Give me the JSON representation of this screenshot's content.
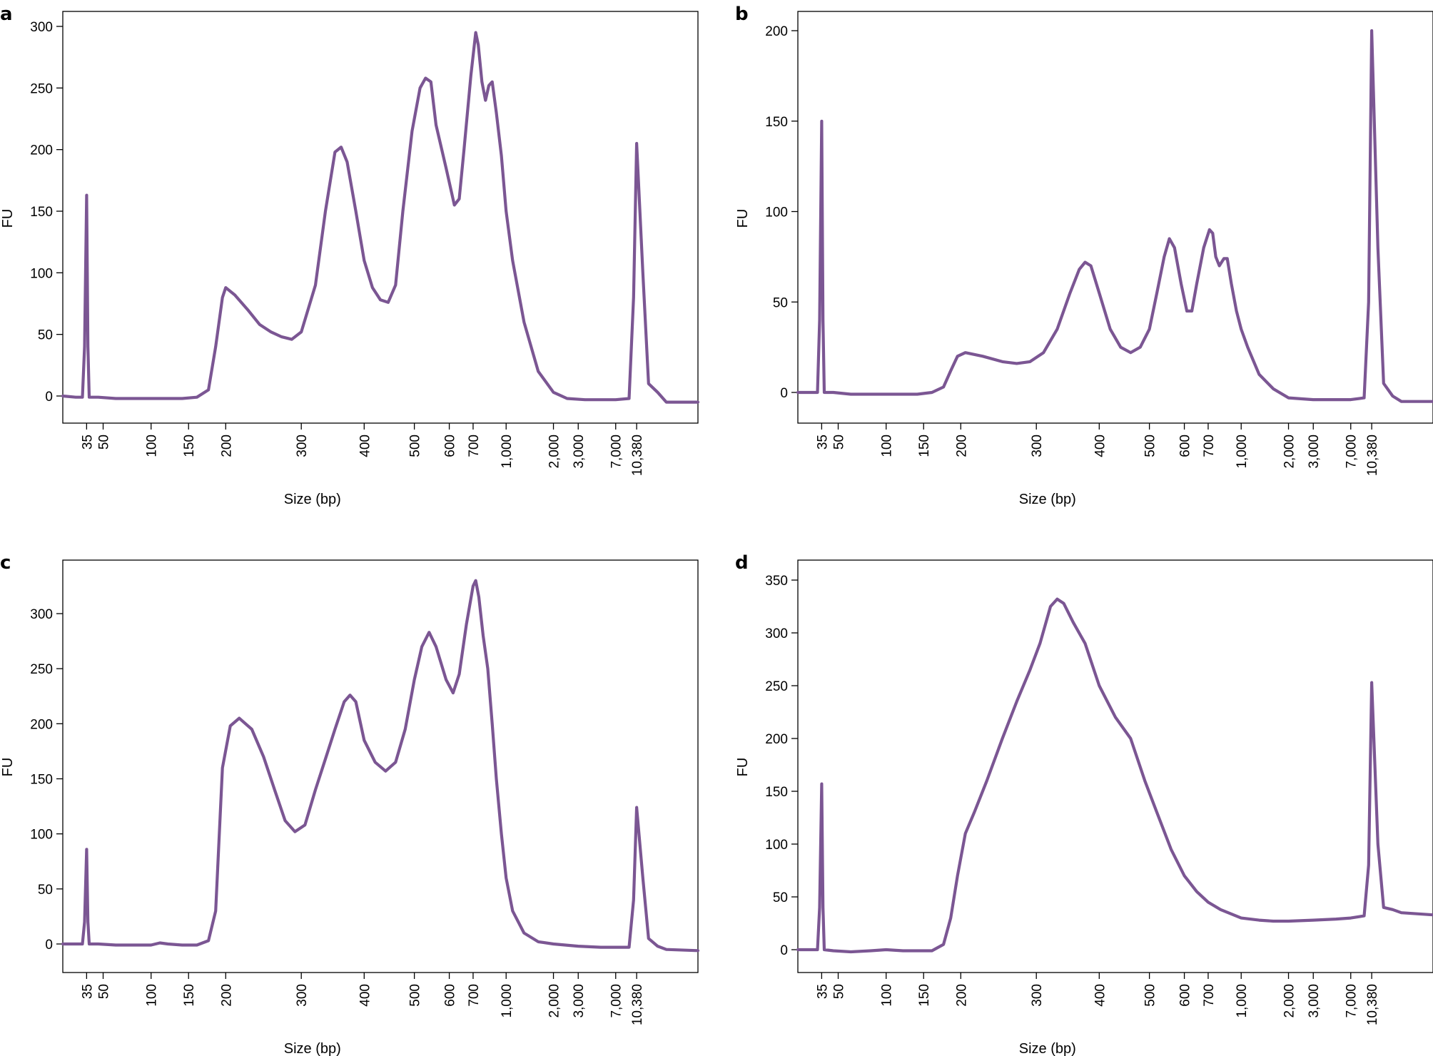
{
  "chart_data": [
    {
      "panel": "a",
      "type": "line",
      "xlabel": "Size (bp)",
      "ylabel": "FU",
      "xscale": "ladder (log-like)",
      "x_ticks": [
        "35",
        "50",
        "100",
        "150",
        "200",
        "300",
        "400",
        "500",
        "600",
        "700",
        "1,000",
        "2,000",
        "3,000",
        "7,000",
        "10,380"
      ],
      "y_ticks": [
        0,
        50,
        100,
        150,
        200,
        250,
        300
      ],
      "ylim": [
        -22,
        310
      ],
      "series": [
        {
          "name": "trace",
          "color": "#7b5693",
          "points": [
            [
              25,
              0
            ],
            [
              30,
              -1
            ],
            [
              33,
              -1
            ],
            [
              34,
              40
            ],
            [
              35,
              163
            ],
            [
              36,
              40
            ],
            [
              37,
              -1
            ],
            [
              45,
              -1
            ],
            [
              60,
              -2
            ],
            [
              80,
              -2
            ],
            [
              100,
              -2
            ],
            [
              120,
              -2
            ],
            [
              140,
              -2
            ],
            [
              160,
              -1
            ],
            [
              175,
              5
            ],
            [
              185,
              40
            ],
            [
              195,
              80
            ],
            [
              200,
              88
            ],
            [
              210,
              82
            ],
            [
              225,
              70
            ],
            [
              240,
              58
            ],
            [
              255,
              52
            ],
            [
              270,
              48
            ],
            [
              285,
              46
            ],
            [
              300,
              52
            ],
            [
              320,
              90
            ],
            [
              335,
              150
            ],
            [
              350,
              198
            ],
            [
              360,
              202
            ],
            [
              370,
              190
            ],
            [
              385,
              150
            ],
            [
              400,
              110
            ],
            [
              415,
              88
            ],
            [
              430,
              78
            ],
            [
              445,
              76
            ],
            [
              460,
              90
            ],
            [
              475,
              150
            ],
            [
              495,
              215
            ],
            [
              515,
              250
            ],
            [
              530,
              258
            ],
            [
              545,
              255
            ],
            [
              560,
              220
            ],
            [
              590,
              185
            ],
            [
              620,
              155
            ],
            [
              640,
              160
            ],
            [
              660,
              200
            ],
            [
              690,
              260
            ],
            [
              720,
              295
            ],
            [
              740,
              285
            ],
            [
              770,
              255
            ],
            [
              800,
              240
            ],
            [
              830,
              252
            ],
            [
              860,
              255
            ],
            [
              900,
              230
            ],
            [
              950,
              195
            ],
            [
              1000,
              150
            ],
            [
              1100,
              110
            ],
            [
              1300,
              60
            ],
            [
              1600,
              20
            ],
            [
              2000,
              3
            ],
            [
              2500,
              -2
            ],
            [
              3500,
              -3
            ],
            [
              5000,
              -3
            ],
            [
              7000,
              -3
            ],
            [
              9000,
              -2
            ],
            [
              9800,
              80
            ],
            [
              10380,
              205
            ],
            [
              10700,
              100
            ],
            [
              11000,
              10
            ],
            [
              11500,
              3
            ],
            [
              12000,
              -5
            ],
            [
              14000,
              -5
            ]
          ]
        }
      ]
    },
    {
      "panel": "b",
      "type": "line",
      "xlabel": "Size (bp)",
      "ylabel": "FU",
      "xscale": "ladder (log-like)",
      "x_ticks": [
        "35",
        "50",
        "100",
        "150",
        "200",
        "300",
        "400",
        "500",
        "600",
        "700",
        "1,000",
        "2,000",
        "3,000",
        "7,000",
        "10,380"
      ],
      "y_ticks": [
        0,
        50,
        100,
        150,
        200
      ],
      "ylim": [
        -17,
        211
      ],
      "series": [
        {
          "name": "trace",
          "color": "#7b5693",
          "points": [
            [
              25,
              0
            ],
            [
              30,
              0
            ],
            [
              33,
              0
            ],
            [
              34,
              40
            ],
            [
              35,
              150
            ],
            [
              36,
              40
            ],
            [
              37,
              0
            ],
            [
              45,
              0
            ],
            [
              60,
              -1
            ],
            [
              80,
              -1
            ],
            [
              100,
              -1
            ],
            [
              120,
              -1
            ],
            [
              140,
              -1
            ],
            [
              160,
              0
            ],
            [
              175,
              3
            ],
            [
              185,
              12
            ],
            [
              195,
              20
            ],
            [
              205,
              22
            ],
            [
              225,
              20
            ],
            [
              250,
              17
            ],
            [
              270,
              16
            ],
            [
              290,
              17
            ],
            [
              310,
              22
            ],
            [
              330,
              35
            ],
            [
              350,
              55
            ],
            [
              365,
              68
            ],
            [
              375,
              72
            ],
            [
              385,
              70
            ],
            [
              400,
              55
            ],
            [
              420,
              35
            ],
            [
              440,
              25
            ],
            [
              460,
              22
            ],
            [
              480,
              25
            ],
            [
              500,
              35
            ],
            [
              520,
              55
            ],
            [
              540,
              75
            ],
            [
              555,
              85
            ],
            [
              570,
              80
            ],
            [
              590,
              60
            ],
            [
              610,
              45
            ],
            [
              630,
              45
            ],
            [
              650,
              60
            ],
            [
              680,
              80
            ],
            [
              710,
              90
            ],
            [
              735,
              88
            ],
            [
              760,
              75
            ],
            [
              790,
              70
            ],
            [
              830,
              74
            ],
            [
              860,
              74
            ],
            [
              900,
              60
            ],
            [
              950,
              45
            ],
            [
              1000,
              35
            ],
            [
              1100,
              25
            ],
            [
              1300,
              10
            ],
            [
              1600,
              2
            ],
            [
              2000,
              -3
            ],
            [
              3000,
              -4
            ],
            [
              5000,
              -4
            ],
            [
              7000,
              -4
            ],
            [
              9000,
              -3
            ],
            [
              9800,
              50
            ],
            [
              10380,
              200
            ],
            [
              10700,
              80
            ],
            [
              11000,
              5
            ],
            [
              11500,
              -2
            ],
            [
              12000,
              -5
            ],
            [
              14000,
              -5
            ]
          ]
        }
      ]
    },
    {
      "panel": "c",
      "type": "line",
      "xlabel": "Size (bp)",
      "ylabel": "FU",
      "xscale": "ladder (log-like)",
      "x_ticks": [
        "35",
        "50",
        "100",
        "150",
        "200",
        "300",
        "400",
        "500",
        "600",
        "700",
        "1,000",
        "2,000",
        "3,000",
        "7,000",
        "10,380"
      ],
      "y_ticks": [
        0,
        50,
        100,
        150,
        200,
        250,
        300
      ],
      "ylim": [
        -25,
        345
      ],
      "series": [
        {
          "name": "trace",
          "color": "#7b5693",
          "points": [
            [
              25,
              0
            ],
            [
              30,
              0
            ],
            [
              33,
              0
            ],
            [
              34,
              20
            ],
            [
              35,
              86
            ],
            [
              36,
              20
            ],
            [
              37,
              0
            ],
            [
              45,
              0
            ],
            [
              60,
              -1
            ],
            [
              80,
              -1
            ],
            [
              100,
              -1
            ],
            [
              110,
              1
            ],
            [
              120,
              0
            ],
            [
              140,
              -1
            ],
            [
              160,
              -1
            ],
            [
              175,
              3
            ],
            [
              185,
              30
            ],
            [
              195,
              160
            ],
            [
              205,
              198
            ],
            [
              215,
              205
            ],
            [
              230,
              195
            ],
            [
              245,
              170
            ],
            [
              260,
              140
            ],
            [
              275,
              112
            ],
            [
              290,
              102
            ],
            [
              305,
              108
            ],
            [
              320,
              140
            ],
            [
              335,
              168
            ],
            [
              350,
              195
            ],
            [
              365,
              220
            ],
            [
              375,
              226
            ],
            [
              385,
              220
            ],
            [
              400,
              185
            ],
            [
              420,
              165
            ],
            [
              440,
              157
            ],
            [
              460,
              165
            ],
            [
              480,
              195
            ],
            [
              500,
              240
            ],
            [
              520,
              270
            ],
            [
              540,
              283
            ],
            [
              560,
              270
            ],
            [
              590,
              240
            ],
            [
              615,
              228
            ],
            [
              640,
              245
            ],
            [
              670,
              290
            ],
            [
              700,
              325
            ],
            [
              720,
              330
            ],
            [
              745,
              315
            ],
            [
              780,
              280
            ],
            [
              820,
              250
            ],
            [
              860,
              200
            ],
            [
              900,
              150
            ],
            [
              950,
              100
            ],
            [
              1000,
              60
            ],
            [
              1100,
              30
            ],
            [
              1300,
              10
            ],
            [
              1600,
              2
            ],
            [
              2000,
              0
            ],
            [
              3000,
              -2
            ],
            [
              5000,
              -3
            ],
            [
              7000,
              -3
            ],
            [
              9000,
              -3
            ],
            [
              9800,
              40
            ],
            [
              10380,
              124
            ],
            [
              10700,
              60
            ],
            [
              11000,
              5
            ],
            [
              11500,
              -2
            ],
            [
              12000,
              -5
            ],
            [
              14000,
              -6
            ]
          ]
        }
      ]
    },
    {
      "panel": "d",
      "type": "line",
      "xlabel": "Size (bp)",
      "ylabel": "FU",
      "xscale": "ladder (log-like)",
      "x_ticks": [
        "35",
        "50",
        "100",
        "150",
        "200",
        "300",
        "400",
        "500",
        "600",
        "700",
        "1,000",
        "2,000",
        "3,000",
        "7,000",
        "10,380"
      ],
      "y_ticks": [
        0,
        50,
        100,
        150,
        200,
        250,
        300,
        350
      ],
      "ylim": [
        -20,
        352
      ],
      "series": [
        {
          "name": "trace",
          "color": "#7b5693",
          "points": [
            [
              25,
              0
            ],
            [
              30,
              0
            ],
            [
              33,
              0
            ],
            [
              34,
              40
            ],
            [
              35,
              157
            ],
            [
              36,
              40
            ],
            [
              37,
              0
            ],
            [
              45,
              -1
            ],
            [
              60,
              -2
            ],
            [
              80,
              -1
            ],
            [
              100,
              0
            ],
            [
              120,
              -1
            ],
            [
              140,
              -1
            ],
            [
              160,
              -1
            ],
            [
              175,
              5
            ],
            [
              185,
              30
            ],
            [
              195,
              70
            ],
            [
              205,
              110
            ],
            [
              215,
              130
            ],
            [
              230,
              160
            ],
            [
              250,
              200
            ],
            [
              270,
              235
            ],
            [
              290,
              265
            ],
            [
              305,
              290
            ],
            [
              320,
              325
            ],
            [
              330,
              332
            ],
            [
              340,
              328
            ],
            [
              355,
              310
            ],
            [
              375,
              290
            ],
            [
              400,
              250
            ],
            [
              430,
              220
            ],
            [
              460,
              200
            ],
            [
              490,
              160
            ],
            [
              520,
              130
            ],
            [
              560,
              95
            ],
            [
              600,
              70
            ],
            [
              650,
              55
            ],
            [
              700,
              45
            ],
            [
              800,
              38
            ],
            [
              1000,
              30
            ],
            [
              1300,
              28
            ],
            [
              1600,
              27
            ],
            [
              2000,
              27
            ],
            [
              3000,
              28
            ],
            [
              5000,
              29
            ],
            [
              7000,
              30
            ],
            [
              9000,
              32
            ],
            [
              9800,
              80
            ],
            [
              10380,
              253
            ],
            [
              10700,
              100
            ],
            [
              11000,
              40
            ],
            [
              11500,
              38
            ],
            [
              12000,
              35
            ],
            [
              14000,
              33
            ]
          ]
        }
      ]
    }
  ]
}
